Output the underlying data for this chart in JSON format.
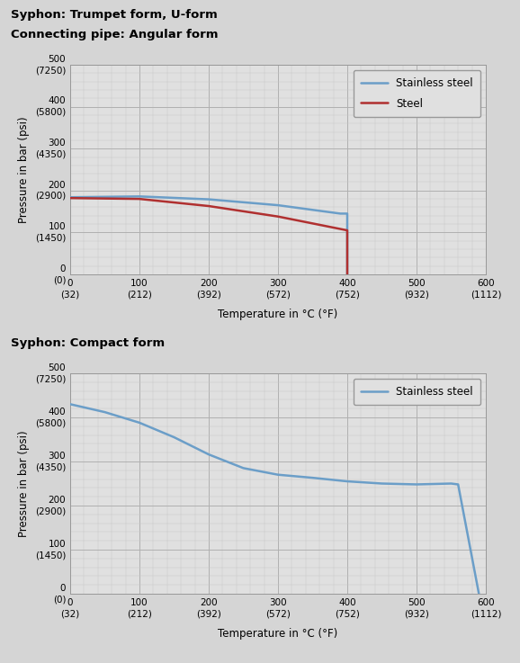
{
  "chart1_title_line1": "Syphon: Trumpet form, U-form",
  "chart1_title_line2": "Connecting pipe: Angular form",
  "chart2_title": "Syphon: Compact form",
  "xlabel": "Temperature in °C (°F)",
  "ylabel": "Pressure in bar (psi)",
  "bg_color": "#d5d5d5",
  "plot_bg_color": "#e0e0e0",
  "grid_major_color": "#b0b0b0",
  "grid_minor_color": "#c8c8c8",
  "stainless_color": "#6b9ec8",
  "steel_color": "#b03030",
  "chart1_stainless_x": [
    0,
    100,
    200,
    300,
    390,
    400,
    400
  ],
  "chart1_stainless_y": [
    184,
    186,
    179,
    165,
    145,
    145,
    0
  ],
  "chart1_steel_x": [
    0,
    100,
    200,
    300,
    400,
    400
  ],
  "chart1_steel_y": [
    182,
    180,
    163,
    138,
    105,
    0
  ],
  "chart2_stainless_x": [
    0,
    50,
    100,
    150,
    200,
    250,
    300,
    350,
    400,
    450,
    500,
    550,
    560,
    590
  ],
  "chart2_stainless_y": [
    430,
    412,
    388,
    355,
    316,
    285,
    270,
    263,
    255,
    250,
    248,
    250,
    248,
    0
  ],
  "xlim": [
    0,
    600
  ],
  "ylim": [
    0,
    500
  ],
  "xticks": [
    0,
    100,
    200,
    300,
    400,
    500,
    600
  ],
  "xticklabels_top": [
    "0",
    "100",
    "200",
    "300",
    "400",
    "500",
    "600"
  ],
  "xticklabels_bot": [
    "(32)",
    "(212)",
    "(392)",
    "(572)",
    "(752)",
    "(932)",
    "(1112)"
  ],
  "yticks": [
    0,
    100,
    200,
    300,
    400,
    500
  ],
  "yticklabels_top": [
    "0",
    "100",
    "200",
    "300",
    "400",
    "500"
  ],
  "yticklabels_bot": [
    "(0)",
    "(1450)",
    "(2900)",
    "(4350)",
    "(5800)",
    "(7250)"
  ],
  "legend1_labels": [
    "Stainless steel",
    "Steel"
  ],
  "legend2_labels": [
    "Stainless steel"
  ]
}
